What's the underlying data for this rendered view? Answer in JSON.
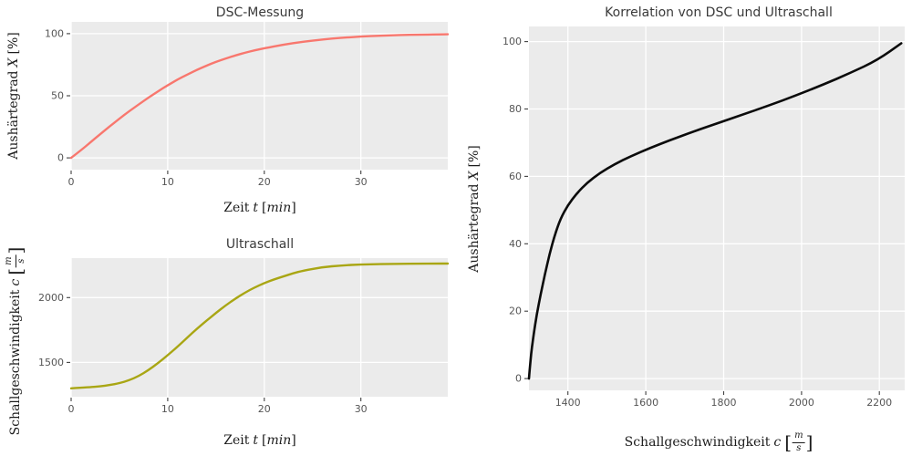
{
  "figure": {
    "background": "#ffffff",
    "panel_color": "#ebebeb",
    "grid_color": "#ffffff",
    "tick_color": "#404040",
    "tick_label_color": "#555555",
    "title_color": "#3a3a3a",
    "axis_label_color": "#1c1c1c"
  },
  "chart_data": [
    {
      "id": "dsc",
      "type": "line",
      "title": "DSC-Messung",
      "xlabel": "Zeit t [min]",
      "ylabel": "Aushärtegrad X [%]",
      "xlabel_parts": {
        "prefix": "Zeit",
        "variable": "t",
        "bracket_open": "[",
        "unit": "min",
        "bracket_close": "]"
      },
      "ylabel_parts": {
        "prefix": "Aushärtegrad",
        "variable": "X",
        "bracket_open": "[",
        "unit": "%",
        "bracket_close": "]"
      },
      "line_color": "#f8776e",
      "line_width": 2.4,
      "grid": true,
      "legend": "none",
      "xlim": [
        0,
        39
      ],
      "ylim": [
        -9.5,
        109.5
      ],
      "xticks": [
        0,
        10,
        20,
        30
      ],
      "yticks": [
        0,
        50,
        100
      ],
      "x": [
        0,
        1,
        2,
        3,
        4,
        5,
        6,
        7,
        8,
        9,
        10,
        11,
        12,
        13,
        14,
        15,
        16,
        17,
        18,
        19,
        20,
        22,
        24,
        26,
        28,
        30,
        32,
        34,
        36,
        38,
        39
      ],
      "y": [
        0,
        6,
        12.5,
        19,
        25.5,
        31.5,
        37.5,
        43,
        48.5,
        53.5,
        58.5,
        63,
        67,
        70.8,
        74.2,
        77.3,
        80,
        82.5,
        84.7,
        86.6,
        88.3,
        91.2,
        93.5,
        95.3,
        96.7,
        97.7,
        98.4,
        98.9,
        99.2,
        99.4,
        99.5
      ]
    },
    {
      "id": "ultraschall",
      "type": "line",
      "title": "Ultraschall",
      "xlabel": "Zeit t [min]",
      "ylabel": "Schallgeschwindigkeit c [m/s]",
      "xlabel_parts": {
        "prefix": "Zeit",
        "variable": "t",
        "bracket_open": "[",
        "unit": "min",
        "bracket_close": "]"
      },
      "ylabel_parts": {
        "prefix": "Schallgeschwindigkeit",
        "variable": "c",
        "bracket_open": "[",
        "unit_numerator": "m",
        "unit_denominator": "s",
        "bracket_close": "]"
      },
      "line_color": "#a9a614",
      "line_width": 2.4,
      "grid": true,
      "legend": "none",
      "xlim": [
        0,
        39
      ],
      "ylim": [
        1235,
        2305
      ],
      "xticks": [
        0,
        10,
        20,
        30
      ],
      "yticks": [
        1500,
        2000
      ],
      "x": [
        0,
        2,
        3,
        4,
        5,
        6,
        7,
        8,
        9,
        10,
        11,
        12,
        13,
        14,
        15,
        16,
        17,
        18,
        19,
        20,
        21,
        22,
        23,
        24,
        26,
        28,
        30,
        32,
        34,
        36,
        38,
        39
      ],
      "y": [
        1300,
        1308,
        1315,
        1325,
        1340,
        1362,
        1395,
        1440,
        1495,
        1555,
        1620,
        1690,
        1758,
        1822,
        1882,
        1940,
        1992,
        2038,
        2078,
        2112,
        2140,
        2164,
        2188,
        2208,
        2235,
        2249,
        2256,
        2259,
        2261,
        2262,
        2263,
        2263
      ]
    },
    {
      "id": "korrelation",
      "type": "line",
      "title": "Korrelation von DSC und Ultraschall",
      "xlabel": "Schallgeschwindigkeit c [m/s]",
      "ylabel": "Aushärtegrad X [%]",
      "xlabel_parts": {
        "prefix": "Schallgeschwindigkeit",
        "variable": "c",
        "bracket_open": "[",
        "unit_numerator": "m",
        "unit_denominator": "s",
        "bracket_close": "]"
      },
      "ylabel_parts": {
        "prefix": "Aushärtegrad",
        "variable": "X",
        "bracket_open": "[",
        "unit": "%",
        "bracket_close": "]"
      },
      "line_color": "#0b0b0b",
      "line_width": 2.6,
      "grid": true,
      "legend": "none",
      "xlim": [
        1300,
        2265
      ],
      "ylim": [
        -3.5,
        104.5
      ],
      "xticks": [
        1400,
        1600,
        1800,
        2000,
        2200
      ],
      "yticks": [
        0,
        20,
        40,
        60,
        80,
        100
      ],
      "x": [
        1300,
        1302,
        1306,
        1312,
        1320,
        1330,
        1341,
        1353,
        1366,
        1381,
        1400,
        1423,
        1450,
        1482,
        1520,
        1562,
        1610,
        1663,
        1720,
        1782,
        1848,
        1915,
        1985,
        2055,
        2125,
        2195,
        2256
      ],
      "y": [
        0,
        3,
        8,
        13,
        19,
        25,
        31,
        37,
        42.5,
        47.5,
        51.5,
        55,
        58.2,
        61,
        63.6,
        66,
        68.4,
        70.8,
        73.2,
        75.7,
        78.3,
        81,
        84,
        87.2,
        90.7,
        94.5,
        99.5
      ]
    }
  ]
}
